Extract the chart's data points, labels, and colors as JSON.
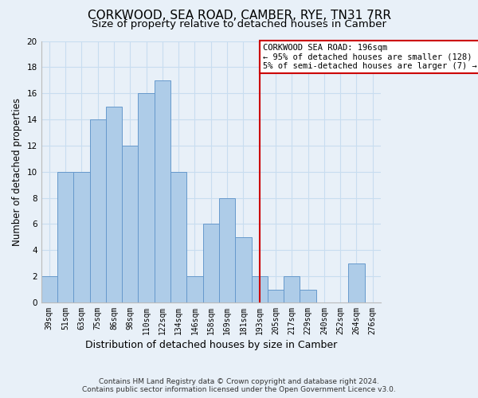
{
  "title": "CORKWOOD, SEA ROAD, CAMBER, RYE, TN31 7RR",
  "subtitle": "Size of property relative to detached houses in Camber",
  "xlabel": "Distribution of detached houses by size in Camber",
  "ylabel": "Number of detached properties",
  "footnote1": "Contains HM Land Registry data © Crown copyright and database right 2024.",
  "footnote2": "Contains public sector information licensed under the Open Government Licence v3.0.",
  "categories": [
    "39sqm",
    "51sqm",
    "63sqm",
    "75sqm",
    "86sqm",
    "98sqm",
    "110sqm",
    "122sqm",
    "134sqm",
    "146sqm",
    "158sqm",
    "169sqm",
    "181sqm",
    "193sqm",
    "205sqm",
    "217sqm",
    "229sqm",
    "240sqm",
    "252sqm",
    "264sqm",
    "276sqm"
  ],
  "values": [
    2,
    10,
    10,
    14,
    15,
    12,
    16,
    17,
    10,
    2,
    6,
    8,
    5,
    2,
    1,
    2,
    1,
    0,
    0,
    3,
    0
  ],
  "bar_color": "#aecce8",
  "bar_edge_color": "#6699cc",
  "grid_color": "#c8ddf0",
  "bg_color": "#e8f0f8",
  "annotation_text": "CORKWOOD SEA ROAD: 196sqm\n← 95% of detached houses are smaller (128)\n5% of semi-detached houses are larger (7) →",
  "vline_x_index": 13,
  "ylim": [
    0,
    20
  ],
  "yticks": [
    0,
    2,
    4,
    6,
    8,
    10,
    12,
    14,
    16,
    18,
    20
  ],
  "annotation_box_color": "#ffffff",
  "annotation_box_edge_color": "#cc0000",
  "vline_color": "#cc0000",
  "title_fontsize": 11,
  "subtitle_fontsize": 9.5,
  "xlabel_fontsize": 9,
  "ylabel_fontsize": 8.5,
  "tick_fontsize": 7,
  "annotation_fontsize": 7.5,
  "footnote_fontsize": 6.5
}
